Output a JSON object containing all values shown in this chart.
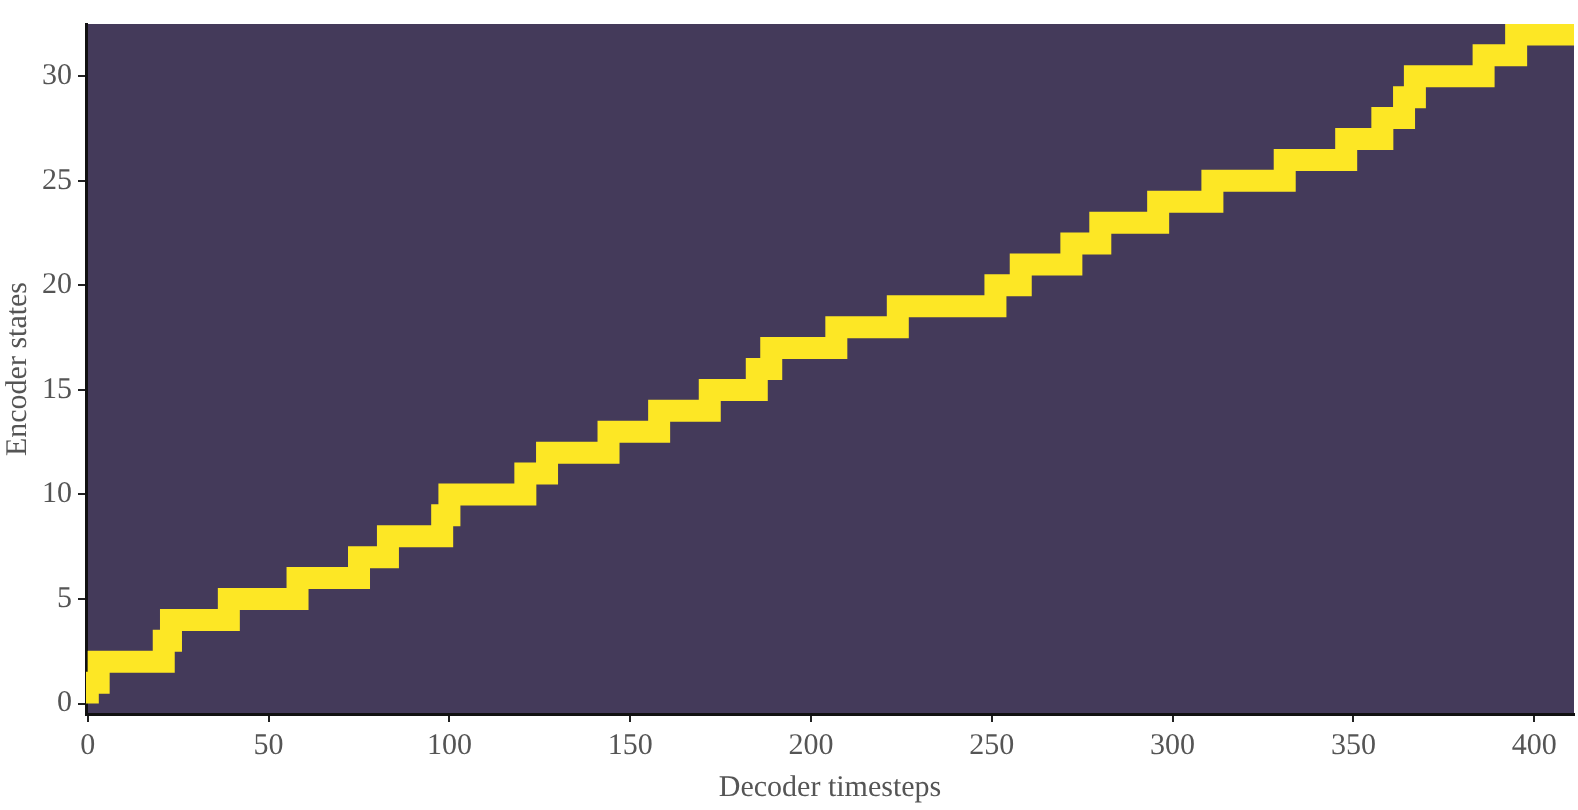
{
  "chart_data": {
    "type": "step",
    "xlabel": "Decoder timesteps",
    "ylabel": "Encoder states",
    "x": [
      0,
      3,
      21,
      23,
      39,
      58,
      75,
      83,
      98,
      100,
      121,
      127,
      144,
      158,
      172,
      185,
      189,
      207,
      224,
      251,
      258,
      272,
      280,
      296,
      311,
      331,
      348,
      358,
      364,
      367,
      386,
      395,
      409,
      411
    ],
    "values": [
      0,
      1,
      2,
      3,
      4,
      5,
      6,
      7,
      8,
      9,
      10,
      11,
      12,
      13,
      14,
      15,
      16,
      17,
      18,
      19,
      20,
      21,
      22,
      23,
      24,
      25,
      26,
      27,
      28,
      29,
      30,
      31,
      32,
      32
    ],
    "color": "#fde725",
    "xlim": [
      -0.5,
      411
    ],
    "ylim": [
      -0.5,
      32.5
    ],
    "xticks": [
      0,
      50,
      100,
      150,
      200,
      250,
      300,
      350,
      400
    ],
    "yticks": [
      0,
      5,
      10,
      15,
      20,
      25,
      30
    ],
    "grid": false,
    "legend": false
  }
}
